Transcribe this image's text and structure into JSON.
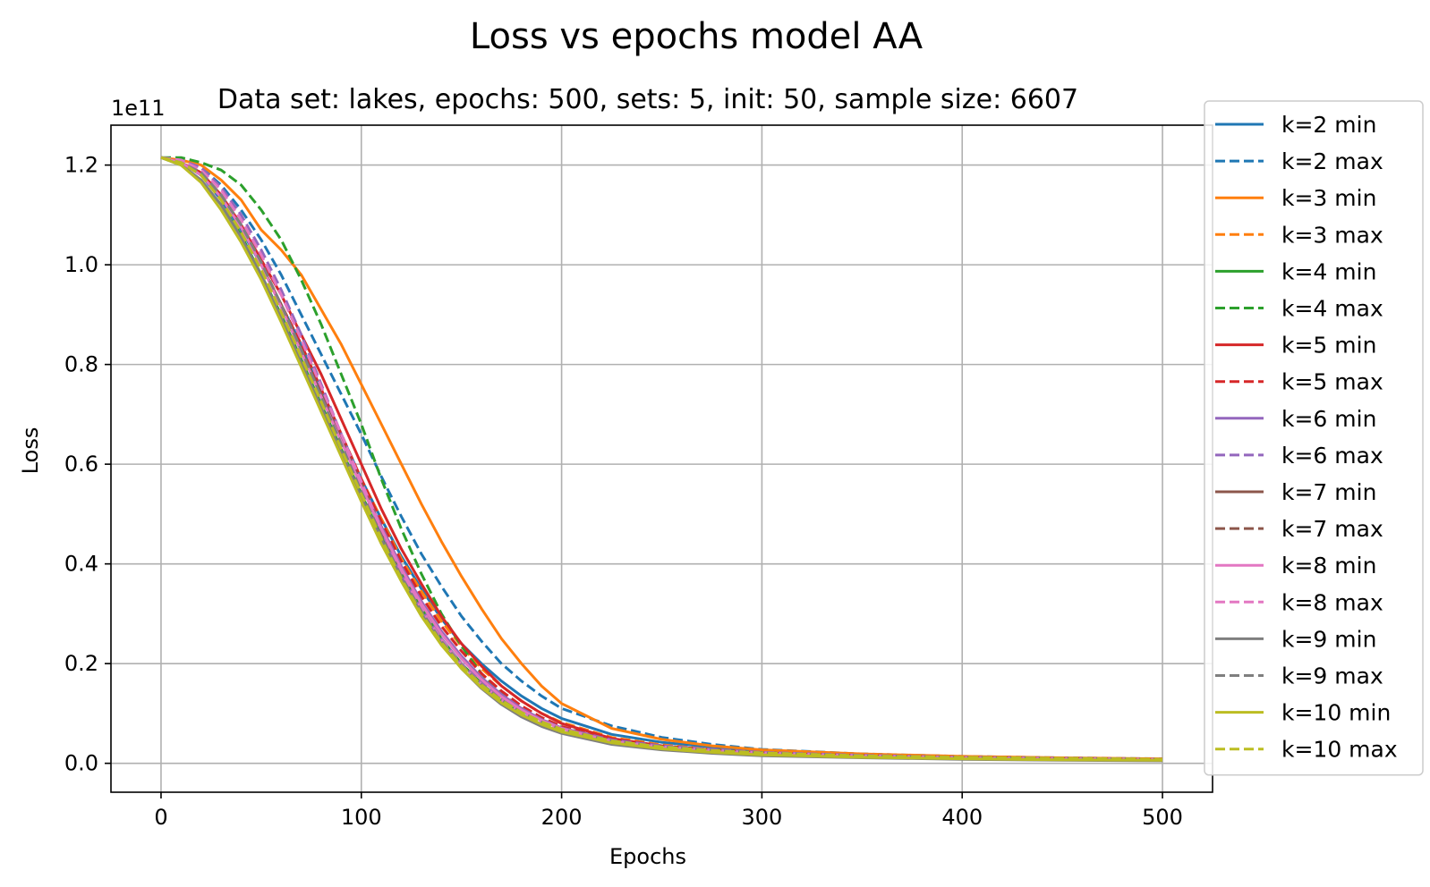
{
  "chart_data": {
    "type": "line",
    "title": "Loss vs epochs model AA",
    "subtitle": "Data set:  lakes, epochs: 500, sets: 5, init: 50, sample size: 6607",
    "xlabel": "Epochs",
    "ylabel": "Loss",
    "y_scale_note": "1e11",
    "xlim": [
      -25,
      525
    ],
    "ylim": [
      -0.058,
      1.28
    ],
    "xticks": [
      0,
      100,
      200,
      300,
      400,
      500
    ],
    "xtick_labels": [
      "0",
      "100",
      "200",
      "300",
      "400",
      "500"
    ],
    "yticks": [
      0.0,
      0.2,
      0.4,
      0.6,
      0.8,
      1.0,
      1.2
    ],
    "ytick_labels": [
      "0.0",
      "0.2",
      "0.4",
      "0.6",
      "0.8",
      "1.0",
      "1.2"
    ],
    "grid": true,
    "legend_position": "right",
    "x": [
      0,
      10,
      20,
      30,
      40,
      50,
      60,
      70,
      80,
      90,
      100,
      110,
      120,
      130,
      140,
      150,
      160,
      170,
      180,
      190,
      200,
      225,
      250,
      275,
      300,
      350,
      400,
      450,
      500
    ],
    "series": [
      {
        "name": "k=2 min",
        "color": "#1f77b4",
        "style": "solid",
        "values": [
          1.215,
          1.205,
          1.18,
          1.13,
          1.07,
          1.0,
          0.92,
          0.84,
          0.75,
          0.66,
          0.57,
          0.49,
          0.415,
          0.35,
          0.29,
          0.24,
          0.2,
          0.165,
          0.135,
          0.11,
          0.09,
          0.058,
          0.042,
          0.033,
          0.025,
          0.017,
          0.012,
          0.01,
          0.008
        ]
      },
      {
        "name": "k=2 max",
        "color": "#1f77b4",
        "style": "dashed",
        "values": [
          1.215,
          1.21,
          1.195,
          1.16,
          1.11,
          1.05,
          0.98,
          0.9,
          0.82,
          0.74,
          0.66,
          0.575,
          0.495,
          0.42,
          0.355,
          0.295,
          0.245,
          0.2,
          0.165,
          0.135,
          0.11,
          0.075,
          0.052,
          0.038,
          0.028,
          0.019,
          0.014,
          0.011,
          0.009
        ]
      },
      {
        "name": "k=3 min",
        "color": "#ff7f0e",
        "style": "solid",
        "values": [
          1.215,
          1.21,
          1.2,
          1.17,
          1.13,
          1.07,
          1.03,
          0.98,
          0.91,
          0.84,
          0.76,
          0.68,
          0.6,
          0.52,
          0.445,
          0.375,
          0.31,
          0.25,
          0.2,
          0.155,
          0.12,
          0.07,
          0.048,
          0.035,
          0.027,
          0.019,
          0.014,
          0.011,
          0.009
        ]
      },
      {
        "name": "k=3 max",
        "color": "#ff7f0e",
        "style": "dashed",
        "values": [
          1.215,
          1.205,
          1.18,
          1.13,
          1.07,
          1.0,
          0.92,
          0.84,
          0.75,
          0.66,
          0.57,
          0.49,
          0.41,
          0.345,
          0.285,
          0.235,
          0.19,
          0.155,
          0.125,
          0.1,
          0.082,
          0.052,
          0.037,
          0.028,
          0.022,
          0.015,
          0.011,
          0.009,
          0.007
        ]
      },
      {
        "name": "k=4 min",
        "color": "#2ca02c",
        "style": "solid",
        "values": [
          1.215,
          1.2,
          1.17,
          1.12,
          1.06,
          0.98,
          0.9,
          0.81,
          0.72,
          0.63,
          0.54,
          0.455,
          0.38,
          0.31,
          0.25,
          0.2,
          0.16,
          0.125,
          0.098,
          0.078,
          0.063,
          0.04,
          0.029,
          0.022,
          0.017,
          0.012,
          0.009,
          0.007,
          0.006
        ]
      },
      {
        "name": "k=4 max",
        "color": "#2ca02c",
        "style": "dashed",
        "values": [
          1.215,
          1.215,
          1.205,
          1.19,
          1.16,
          1.11,
          1.05,
          0.97,
          0.88,
          0.78,
          0.68,
          0.57,
          0.47,
          0.38,
          0.3,
          0.235,
          0.18,
          0.14,
          0.11,
          0.088,
          0.072,
          0.048,
          0.035,
          0.027,
          0.021,
          0.015,
          0.011,
          0.009,
          0.007
        ]
      },
      {
        "name": "k=5 min",
        "color": "#d62728",
        "style": "solid",
        "values": [
          1.215,
          1.205,
          1.185,
          1.14,
          1.08,
          1.01,
          0.94,
          0.86,
          0.78,
          0.69,
          0.6,
          0.51,
          0.43,
          0.36,
          0.295,
          0.24,
          0.195,
          0.155,
          0.125,
          0.1,
          0.08,
          0.05,
          0.035,
          0.027,
          0.021,
          0.015,
          0.011,
          0.009,
          0.007
        ]
      },
      {
        "name": "k=5 max",
        "color": "#d62728",
        "style": "dashed",
        "values": [
          1.215,
          1.205,
          1.18,
          1.135,
          1.075,
          1.0,
          0.92,
          0.84,
          0.75,
          0.66,
          0.57,
          0.485,
          0.405,
          0.335,
          0.275,
          0.225,
          0.18,
          0.145,
          0.115,
          0.092,
          0.074,
          0.047,
          0.034,
          0.026,
          0.02,
          0.014,
          0.011,
          0.009,
          0.007
        ]
      },
      {
        "name": "k=6 min",
        "color": "#9467bd",
        "style": "solid",
        "values": [
          1.215,
          1.205,
          1.18,
          1.135,
          1.075,
          1.0,
          0.92,
          0.83,
          0.74,
          0.65,
          0.56,
          0.475,
          0.395,
          0.325,
          0.265,
          0.215,
          0.172,
          0.138,
          0.11,
          0.088,
          0.071,
          0.045,
          0.032,
          0.024,
          0.019,
          0.013,
          0.01,
          0.008,
          0.006
        ]
      },
      {
        "name": "k=6 max",
        "color": "#9467bd",
        "style": "dashed",
        "values": [
          1.215,
          1.21,
          1.195,
          1.155,
          1.1,
          1.03,
          0.95,
          0.86,
          0.76,
          0.66,
          0.56,
          0.465,
          0.38,
          0.31,
          0.25,
          0.2,
          0.162,
          0.13,
          0.105,
          0.086,
          0.071,
          0.047,
          0.035,
          0.028,
          0.022,
          0.016,
          0.012,
          0.01,
          0.008
        ]
      },
      {
        "name": "k=7 min",
        "color": "#8c564b",
        "style": "solid",
        "values": [
          1.215,
          1.205,
          1.18,
          1.135,
          1.075,
          1.0,
          0.92,
          0.83,
          0.74,
          0.65,
          0.56,
          0.47,
          0.39,
          0.32,
          0.26,
          0.21,
          0.168,
          0.134,
          0.107,
          0.086,
          0.07,
          0.044,
          0.031,
          0.024,
          0.018,
          0.013,
          0.01,
          0.008,
          0.006
        ]
      },
      {
        "name": "k=7 max",
        "color": "#8c564b",
        "style": "dashed",
        "values": [
          1.215,
          1.205,
          1.185,
          1.14,
          1.08,
          1.0,
          0.92,
          0.83,
          0.74,
          0.645,
          0.55,
          0.46,
          0.375,
          0.305,
          0.245,
          0.197,
          0.158,
          0.127,
          0.102,
          0.083,
          0.068,
          0.045,
          0.033,
          0.026,
          0.02,
          0.014,
          0.011,
          0.009,
          0.007
        ]
      },
      {
        "name": "k=8 min",
        "color": "#e377c2",
        "style": "solid",
        "values": [
          1.215,
          1.205,
          1.18,
          1.135,
          1.075,
          1.0,
          0.915,
          0.825,
          0.735,
          0.645,
          0.555,
          0.47,
          0.39,
          0.32,
          0.26,
          0.21,
          0.168,
          0.134,
          0.107,
          0.086,
          0.07,
          0.044,
          0.031,
          0.024,
          0.018,
          0.013,
          0.01,
          0.008,
          0.006
        ]
      },
      {
        "name": "k=8 max",
        "color": "#e377c2",
        "style": "dashed",
        "values": [
          1.215,
          1.21,
          1.19,
          1.15,
          1.09,
          1.02,
          0.94,
          0.85,
          0.755,
          0.66,
          0.565,
          0.47,
          0.385,
          0.31,
          0.248,
          0.198,
          0.158,
          0.127,
          0.102,
          0.083,
          0.068,
          0.045,
          0.033,
          0.026,
          0.021,
          0.015,
          0.011,
          0.009,
          0.008
        ]
      },
      {
        "name": "k=9 min",
        "color": "#7f7f7f",
        "style": "solid",
        "values": [
          1.215,
          1.2,
          1.17,
          1.12,
          1.055,
          0.98,
          0.895,
          0.805,
          0.715,
          0.625,
          0.535,
          0.45,
          0.37,
          0.3,
          0.24,
          0.19,
          0.15,
          0.118,
          0.093,
          0.074,
          0.06,
          0.038,
          0.027,
          0.02,
          0.015,
          0.011,
          0.008,
          0.006,
          0.005
        ]
      },
      {
        "name": "k=9 max",
        "color": "#7f7f7f",
        "style": "dashed",
        "values": [
          1.215,
          1.205,
          1.185,
          1.14,
          1.08,
          1.005,
          0.92,
          0.83,
          0.735,
          0.64,
          0.545,
          0.455,
          0.375,
          0.305,
          0.245,
          0.197,
          0.158,
          0.127,
          0.102,
          0.083,
          0.068,
          0.045,
          0.033,
          0.026,
          0.021,
          0.015,
          0.012,
          0.01,
          0.008
        ]
      },
      {
        "name": "k=10 min",
        "color": "#bcbd22",
        "style": "solid",
        "values": [
          1.215,
          1.2,
          1.165,
          1.11,
          1.045,
          0.97,
          0.885,
          0.795,
          0.705,
          0.615,
          0.525,
          0.44,
          0.365,
          0.295,
          0.237,
          0.19,
          0.152,
          0.121,
          0.097,
          0.078,
          0.063,
          0.041,
          0.029,
          0.022,
          0.017,
          0.012,
          0.009,
          0.007,
          0.006
        ]
      },
      {
        "name": "k=10 max",
        "color": "#bcbd22",
        "style": "dashed",
        "values": [
          1.215,
          1.205,
          1.18,
          1.13,
          1.065,
          0.99,
          0.905,
          0.815,
          0.725,
          0.63,
          0.54,
          0.45,
          0.37,
          0.3,
          0.242,
          0.195,
          0.157,
          0.126,
          0.102,
          0.083,
          0.068,
          0.045,
          0.033,
          0.026,
          0.021,
          0.015,
          0.012,
          0.01,
          0.008
        ]
      }
    ]
  }
}
